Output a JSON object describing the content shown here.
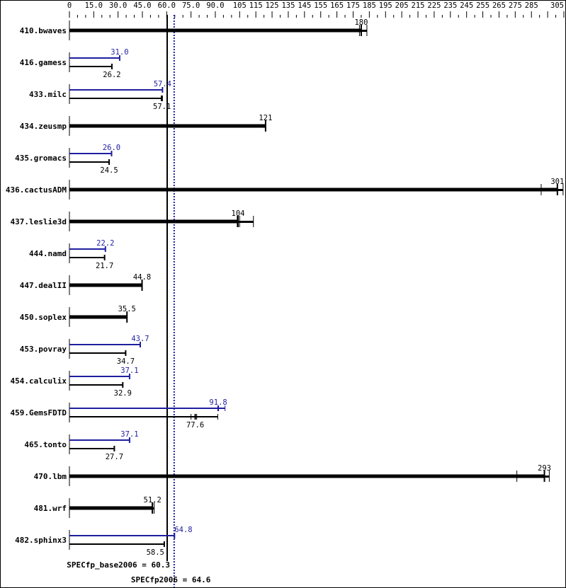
{
  "chart_data": {
    "type": "bar",
    "orientation": "horizontal",
    "title": "",
    "xlabel": "",
    "ylabel": "",
    "xlim": [
      0,
      305
    ],
    "axis_position": "top",
    "tick_labels": [
      "0",
      "15.0",
      "30.0",
      "45.0",
      "60.0",
      "75.0",
      "90.0",
      "105",
      "115",
      "125",
      "135",
      "145",
      "155",
      "165",
      "175",
      "185",
      "195",
      "205",
      "215",
      "225",
      "235",
      "245",
      "255",
      "265",
      "275",
      "285",
      "305"
    ],
    "tick_values": [
      0,
      15,
      30,
      45,
      60,
      75,
      90,
      105,
      115,
      125,
      135,
      145,
      155,
      165,
      175,
      185,
      195,
      205,
      215,
      225,
      235,
      245,
      255,
      265,
      275,
      285,
      305
    ],
    "legend": {
      "base": "SPECfp_base2006",
      "peak": "SPECfp2006"
    },
    "series_colors": {
      "base": "#000000",
      "peak": "#1f1fa0"
    },
    "categories": [
      "410.bwaves",
      "416.gamess",
      "433.milc",
      "434.zeusmp",
      "435.gromacs",
      "436.cactusADM",
      "437.leslie3d",
      "444.namd",
      "447.dealII",
      "450.soplex",
      "453.povray",
      "454.calculix",
      "459.GemsFDTD",
      "465.tonto",
      "470.lbm",
      "481.wrf",
      "482.sphinx3"
    ],
    "series": [
      {
        "name": "SPECfp_base2006 (base)",
        "values": [
          180,
          26.2,
          57.1,
          121,
          24.5,
          301,
          104,
          21.7,
          44.8,
          35.5,
          34.7,
          32.9,
          77.6,
          27.7,
          293,
          51.2,
          58.5
        ]
      },
      {
        "name": "SPECfp2006 (peak)",
        "values": [
          null,
          31.0,
          57.4,
          null,
          26.0,
          null,
          null,
          22.2,
          null,
          null,
          43.7,
          37.1,
          91.8,
          37.1,
          null,
          null,
          64.8
        ]
      }
    ],
    "run_ticks": {
      "410.bwaves": [
        178.9,
        183.5
      ],
      "433.milc": [
        56.6,
        57.4
      ],
      "436.cactusADM": [
        291,
        301,
        304.5
      ],
      "437.leslie3d": [
        103.5,
        105,
        113.5
      ],
      "459.GemsFDTD": [
        75,
        78.5,
        91.5
      ],
      "459.GemsFDTD_peak": [
        91.5,
        96
      ],
      "470.lbm": [
        276,
        293,
        296
      ],
      "481.wrf": [
        51,
        52.3
      ]
    },
    "reference_lines": [
      {
        "label": "SPECfp_base2006 = 60.3",
        "value": 60.3,
        "style": "solid",
        "color": "#000000"
      },
      {
        "label": "SPECfp2006 = 64.6",
        "value": 64.6,
        "style": "dotted",
        "color": "#1f1fa0"
      }
    ]
  },
  "summary": {
    "base_label": "SPECfp_base2006 = 60.3",
    "peak_label": "SPECfp2006 = 64.6"
  }
}
